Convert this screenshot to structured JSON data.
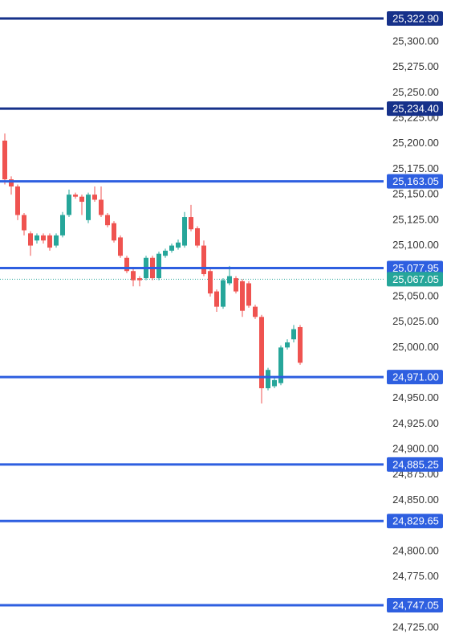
{
  "chart_data": {
    "type": "candlestick",
    "ylim": [
      24710,
      25341
    ],
    "yticks": [
      {
        "value": 25300,
        "label": "25,300.00"
      },
      {
        "value": 25275,
        "label": "25,275.00"
      },
      {
        "value": 25250,
        "label": "25,250.00"
      },
      {
        "value": 25225,
        "label": "25,225.00"
      },
      {
        "value": 25200,
        "label": "25,200.00"
      },
      {
        "value": 25175,
        "label": "25,175.00"
      },
      {
        "value": 25150,
        "label": "25,150.00"
      },
      {
        "value": 25125,
        "label": "25,125.00"
      },
      {
        "value": 25100,
        "label": "25,100.00"
      },
      {
        "value": 25050,
        "label": "25,050.00"
      },
      {
        "value": 25025,
        "label": "25,025.00"
      },
      {
        "value": 25000,
        "label": "25,000.00"
      },
      {
        "value": 24950,
        "label": "24,950.00"
      },
      {
        "value": 24925,
        "label": "24,925.00"
      },
      {
        "value": 24900,
        "label": "24,900.00"
      },
      {
        "value": 24875,
        "label": "24,875.00"
      },
      {
        "value": 24850,
        "label": "24,850.00"
      },
      {
        "value": 24800,
        "label": "24,800.00"
      },
      {
        "value": 24775,
        "label": "24,775.00"
      },
      {
        "value": 24725,
        "label": "24,725.00"
      }
    ],
    "up_color": "#26a69a",
    "down_color": "#ef5350",
    "open": [
      25203,
      25165,
      25158,
      25130,
      25112,
      25105,
      25110,
      25110,
      25100,
      25110,
      25130,
      25150,
      25148,
      25125,
      25150,
      25145,
      25130,
      25122,
      25108,
      25088,
      25075,
      25068,
      25068,
      25088,
      25068,
      25090,
      25095,
      25098,
      25100,
      25128,
      25117,
      25100,
      25075,
      25055,
      25040,
      25063,
      25068,
      25065,
      25063,
      25040,
      25030,
      24960,
      24962,
      24965,
      25000,
      25008,
      25020
    ],
    "high": [
      25210,
      25168,
      25160,
      25132,
      25114,
      25112,
      25112,
      25112,
      25112,
      25133,
      25155,
      25152,
      25150,
      25152,
      25158,
      25158,
      25132,
      25124,
      25110,
      25090,
      25077,
      25070,
      25090,
      25090,
      25094,
      25097,
      25102,
      25106,
      25133,
      25140,
      25119,
      25105,
      25077,
      25057,
      25068,
      25080,
      25070,
      25067,
      25065,
      25042,
      25032,
      24980,
      24970,
      25002,
      25008,
      25022,
      25022
    ],
    "low": [
      25160,
      25150,
      25125,
      25110,
      25090,
      25102,
      25102,
      25095,
      25098,
      25108,
      25128,
      25146,
      25130,
      25122,
      25143,
      25128,
      25118,
      25103,
      25088,
      25073,
      25060,
      25060,
      25066,
      25066,
      25066,
      25088,
      25093,
      25096,
      25098,
      25114,
      25098,
      25070,
      25050,
      25035,
      25038,
      25061,
      25053,
      25030,
      25039,
      25028,
      24945,
      24958,
      24960,
      24963,
      24998,
      25005,
      24983
    ],
    "close": [
      25165,
      25158,
      25130,
      25115,
      25100,
      25110,
      25105,
      25098,
      25110,
      25130,
      25150,
      25148,
      25143,
      25150,
      25145,
      25130,
      25120,
      25105,
      25090,
      25075,
      25066,
      25066,
      25088,
      25068,
      25092,
      25095,
      25100,
      25103,
      25128,
      25116,
      25100,
      25072,
      25053,
      25040,
      25066,
      25070,
      25055,
      25036,
      25041,
      25030,
      24960,
      24978,
      24968,
      25000,
      25005,
      25018,
      24985
    ],
    "levels": [
      {
        "value": 25322.9,
        "label": "25,322.90",
        "color": "#16318a"
      },
      {
        "value": 25234.4,
        "label": "25,234.40",
        "color": "#16318a"
      },
      {
        "value": 25163.05,
        "label": "25,163.05",
        "color": "#2e5fe0"
      },
      {
        "value": 25077.95,
        "label": "25,077.95",
        "color": "#2e5fe0"
      },
      {
        "value": 24971,
        "label": "24,971.00",
        "color": "#2e5fe0"
      },
      {
        "value": 24885.25,
        "label": "24,885.25",
        "color": "#2e5fe0"
      },
      {
        "value": 24829.65,
        "label": "24,829.65",
        "color": "#2e5fe0"
      },
      {
        "value": 24747.05,
        "label": "24,747.05",
        "color": "#2e5fe0"
      }
    ],
    "current_price": {
      "value": 25067.05,
      "label": "25,067.05",
      "color": "#26a69a"
    }
  }
}
